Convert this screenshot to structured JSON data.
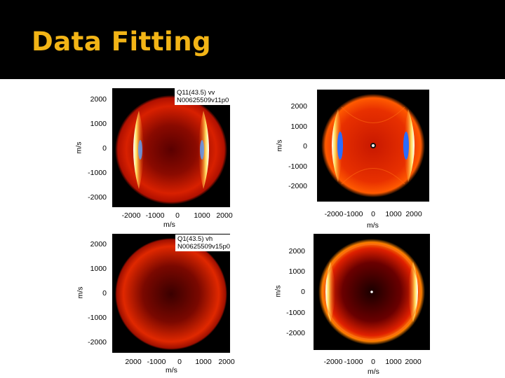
{
  "slide": {
    "title": "Data Fitting"
  },
  "axes": {
    "y_label": "m/s",
    "x_label": "m/s"
  },
  "panels": [
    {
      "id": "exp-top",
      "annotation_line1": "Q11(43.5) vv",
      "annotation_line2": "N00625509v11p0",
      "y_ticks": [
        "2000",
        "1000",
        "0",
        "-1000",
        "-2000"
      ],
      "x_ticks": [
        "-2000",
        "-1000",
        "0",
        "1000",
        "2000"
      ]
    },
    {
      "id": "sim-top",
      "y_ticks": [
        "2000",
        "1000",
        "0",
        "-1000",
        "-2000"
      ],
      "x_ticks": [
        "-2000",
        "-1000",
        "0",
        "1000",
        "2000"
      ]
    },
    {
      "id": "exp-bottom",
      "annotation_line1": "Q1(43.5) vh",
      "annotation_line2": "N00625509v15p0",
      "y_ticks": [
        "2000",
        "1000",
        "0",
        "-1000",
        "-2000"
      ],
      "x_ticks": [
        "2000",
        "-1000",
        "0",
        "1000",
        "2000"
      ]
    },
    {
      "id": "sim-bottom",
      "y_ticks": [
        "2000",
        "1000",
        "0",
        "-1000",
        "-2000"
      ],
      "x_ticks": [
        "-2000",
        "-1000",
        "0",
        "1000",
        "2000"
      ]
    }
  ]
}
